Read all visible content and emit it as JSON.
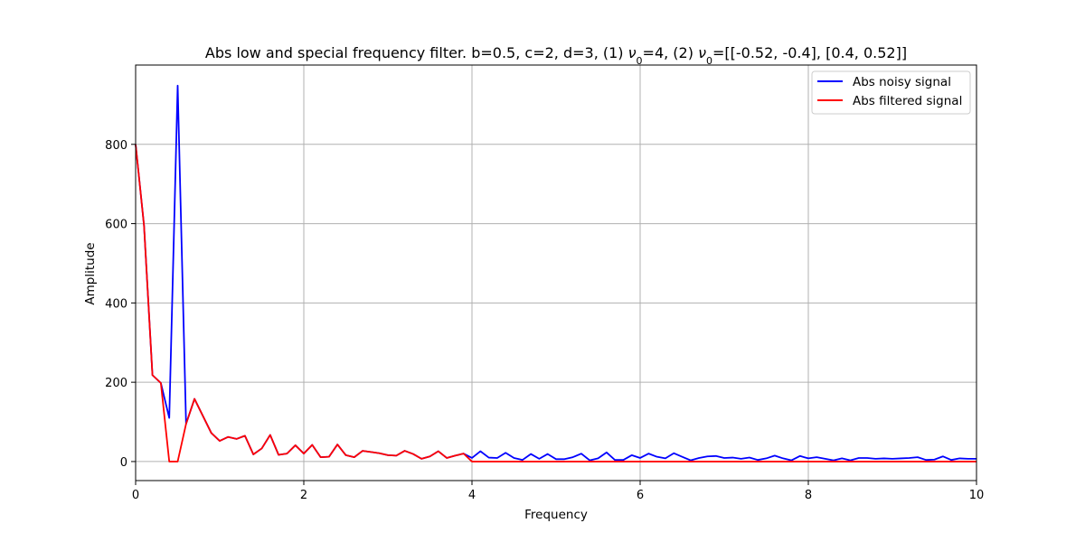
{
  "chart_data": {
    "type": "line",
    "title": "Abs low and special frequency filter. b=0.5, c=2, d=3, (1) ν0=4, (2) ν0=[[-0.52, -0.4], [0.4, 0.52]]",
    "title_parts": {
      "prefix": "Abs low and special frequency filter. b=0.5, c=2, d=3, (1) ",
      "nu": "ν",
      "sub": "0",
      "mid": "=4, (2) ",
      "suffix": "=[[-0.52, -0.4], [0.4, 0.52]]"
    },
    "xlabel": "Frequency",
    "ylabel": "Amplitude",
    "xlim": [
      0,
      10
    ],
    "ylim": [
      -48,
      1000
    ],
    "xticks": [
      0,
      2,
      4,
      6,
      8,
      10
    ],
    "xtick_labels": [
      "0",
      "2",
      "4",
      "6",
      "8",
      "10"
    ],
    "yticks": [
      0,
      200,
      400,
      600,
      800
    ],
    "ytick_labels": [
      "0",
      "200",
      "400",
      "600",
      "800"
    ],
    "grid": true,
    "legend_position": "top-right",
    "colors": {
      "noisy": "#0000ff",
      "filtered": "#ff0000"
    },
    "x": [
      0.0,
      0.1,
      0.2,
      0.3,
      0.4,
      0.5,
      0.6,
      0.7,
      0.8,
      0.9,
      1.0,
      1.1,
      1.2,
      1.3,
      1.4,
      1.5,
      1.6,
      1.7,
      1.8,
      1.9,
      2.0,
      2.1,
      2.2,
      2.3,
      2.4,
      2.5,
      2.6,
      2.7,
      2.8,
      2.9,
      3.0,
      3.1,
      3.2,
      3.3,
      3.4,
      3.5,
      3.6,
      3.7,
      3.8,
      3.9,
      4.0,
      4.1,
      4.2,
      4.3,
      4.4,
      4.5,
      4.6,
      4.7,
      4.8,
      4.9,
      5.0,
      5.1,
      5.2,
      5.3,
      5.4,
      5.5,
      5.6,
      5.7,
      5.8,
      5.9,
      6.0,
      6.1,
      6.2,
      6.3,
      6.4,
      6.5,
      6.6,
      6.7,
      6.8,
      6.9,
      7.0,
      7.1,
      7.2,
      7.3,
      7.4,
      7.5,
      7.6,
      7.7,
      7.8,
      7.9,
      8.0,
      8.1,
      8.2,
      8.3,
      8.4,
      8.5,
      8.6,
      8.7,
      8.8,
      8.9,
      9.0,
      9.1,
      9.2,
      9.3,
      9.4,
      9.5,
      9.6,
      9.7,
      9.8,
      9.9,
      10.0
    ],
    "series": [
      {
        "name": "Abs noisy signal",
        "values": [
          800,
          595,
          218,
          198,
          110,
          948,
          95,
          158,
          115,
          72,
          52,
          62,
          57,
          65,
          18,
          33,
          67,
          17,
          20,
          41,
          20,
          42,
          11,
          12,
          43,
          16,
          11,
          27,
          24,
          21,
          16,
          15,
          27,
          19,
          7,
          13,
          26,
          9,
          15,
          20,
          9,
          26,
          10,
          9,
          22,
          9,
          4,
          19,
          7,
          19,
          6,
          6,
          11,
          20,
          3,
          8,
          23,
          4,
          4,
          16,
          9,
          20,
          12,
          8,
          21,
          12,
          3,
          9,
          13,
          14,
          9,
          10,
          7,
          10,
          4,
          8,
          15,
          8,
          3,
          14,
          8,
          11,
          7,
          3,
          8,
          3,
          9,
          9,
          7,
          8,
          7,
          8,
          9,
          11,
          4,
          5,
          13,
          4,
          8,
          7,
          7
        ]
      },
      {
        "name": "Abs filtered signal",
        "values": [
          800,
          595,
          218,
          198,
          0,
          0,
          95,
          158,
          115,
          72,
          52,
          62,
          57,
          65,
          18,
          33,
          67,
          17,
          20,
          41,
          20,
          42,
          11,
          12,
          43,
          16,
          11,
          27,
          24,
          21,
          16,
          15,
          27,
          19,
          7,
          13,
          26,
          9,
          15,
          20,
          0,
          0,
          0,
          0,
          0,
          0,
          0,
          0,
          0,
          0,
          0,
          0,
          0,
          0,
          0,
          0,
          0,
          0,
          0,
          0,
          0,
          0,
          0,
          0,
          0,
          0,
          0,
          0,
          0,
          0,
          0,
          0,
          0,
          0,
          0,
          0,
          0,
          0,
          0,
          0,
          0,
          0,
          0,
          0,
          0,
          0,
          0,
          0,
          0,
          0,
          0,
          0,
          0,
          0,
          0,
          0,
          0,
          0,
          0,
          0,
          0
        ]
      }
    ]
  }
}
